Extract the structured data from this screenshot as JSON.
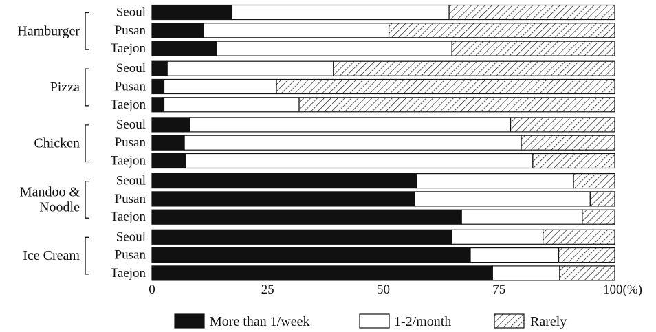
{
  "chart_data": {
    "type": "bar",
    "orientation": "horizontal",
    "stacked": true,
    "grid": false,
    "legend_position": "bottom",
    "xlim": [
      0,
      100
    ],
    "x_ticks": [
      "0",
      "25",
      "50",
      "75",
      "100(%)"
    ],
    "legend": [
      {
        "key": "more_than_1_week",
        "label": "More than 1/week",
        "color": "#111111",
        "pattern": "solid"
      },
      {
        "key": "one_two_month",
        "label": "1-2/month",
        "color": "#ffffff",
        "pattern": "empty"
      },
      {
        "key": "rarely",
        "label": "Rarely",
        "color": "#ffffff",
        "pattern": "hatched"
      }
    ],
    "groups": [
      {
        "label_lines": [
          "Hamburger"
        ],
        "rows": [
          {
            "city": "Seoul",
            "values": [
              17.3,
              46.9,
              35.8
            ]
          },
          {
            "city": "Pusan",
            "values": [
              11.1,
              40.1,
              48.8
            ]
          },
          {
            "city": "Taejon",
            "values": [
              13.9,
              50.9,
              35.2
            ]
          }
        ]
      },
      {
        "label_lines": [
          "Pizza"
        ],
        "rows": [
          {
            "city": "Seoul",
            "values": [
              3.3,
              35.9,
              60.8
            ]
          },
          {
            "city": "Pusan",
            "values": [
              2.6,
              24.3,
              73.1
            ]
          },
          {
            "city": "Taejon",
            "values": [
              2.6,
              29.2,
              68.2
            ]
          }
        ]
      },
      {
        "label_lines": [
          "Chicken"
        ],
        "rows": [
          {
            "city": "Seoul",
            "values": [
              8.1,
              69.4,
              22.5
            ]
          },
          {
            "city": "Pusan",
            "values": [
              7.0,
              72.8,
              20.2
            ]
          },
          {
            "city": "Taejon",
            "values": [
              7.3,
              75.0,
              17.7
            ]
          }
        ]
      },
      {
        "label_lines": [
          "Mandoo &",
          "Noodle"
        ],
        "rows": [
          {
            "city": "Seoul",
            "values": [
              57.2,
              33.9,
              8.9
            ]
          },
          {
            "city": "Pusan",
            "values": [
              56.8,
              37.9,
              5.3
            ]
          },
          {
            "city": "Taejon",
            "values": [
              66.9,
              26.1,
              7.0
            ]
          }
        ]
      },
      {
        "label_lines": [
          "Ice Cream"
        ],
        "rows": [
          {
            "city": "Seoul",
            "values": [
              64.7,
              19.8,
              15.5
            ]
          },
          {
            "city": "Pusan",
            "values": [
              68.8,
              19.1,
              12.1
            ]
          },
          {
            "city": "Taejon",
            "values": [
              73.6,
              14.5,
              11.9
            ]
          }
        ]
      }
    ]
  }
}
